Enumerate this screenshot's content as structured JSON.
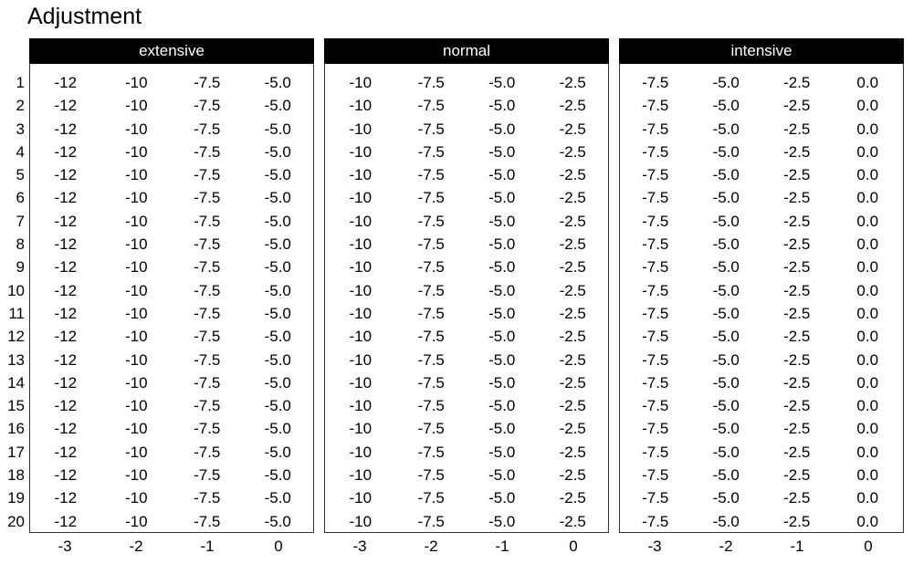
{
  "title": "Adjustment",
  "colors": {
    "background": "#ffffff",
    "header_bg": "#000000",
    "header_text": "#ffffff",
    "body_text": "#000000",
    "border": "#333333"
  },
  "row_numbers": [
    "1",
    "2",
    "3",
    "4",
    "5",
    "6",
    "7",
    "8",
    "9",
    "10",
    "11",
    "12",
    "13",
    "14",
    "15",
    "16",
    "17",
    "18",
    "19",
    "20"
  ],
  "panels": [
    {
      "header": "extensive",
      "row_count": 20,
      "cells": [
        "-12",
        "-10",
        "-7.5",
        "-5.0"
      ],
      "axis_labels": [
        "-3",
        "-2",
        "-1",
        "0"
      ]
    },
    {
      "header": "normal",
      "row_count": 20,
      "cells": [
        "-10",
        "-7.5",
        "-5.0",
        "-2.5"
      ],
      "axis_labels": [
        "-3",
        "-2",
        "-1",
        "0"
      ]
    },
    {
      "header": "intensive",
      "row_count": 20,
      "cells": [
        "-7.5",
        "-5.0",
        "-2.5",
        "0.0"
      ],
      "axis_labels": [
        "-3",
        "-2",
        "-1",
        "0"
      ]
    }
  ],
  "chart_data": {
    "type": "table",
    "title": "Adjustment",
    "column_labels": [
      -3,
      -2,
      -1,
      0
    ],
    "row_labels": [
      1,
      2,
      3,
      4,
      5,
      6,
      7,
      8,
      9,
      10,
      11,
      12,
      13,
      14,
      15,
      16,
      17,
      18,
      19,
      20
    ],
    "panels": [
      {
        "name": "extensive",
        "rows": 20,
        "values_per_row": [
          -12,
          -10,
          -7.5,
          -5.0
        ]
      },
      {
        "name": "normal",
        "rows": 20,
        "values_per_row": [
          -10,
          -7.5,
          -5.0,
          -2.5
        ]
      },
      {
        "name": "intensive",
        "rows": 20,
        "values_per_row": [
          -7.5,
          -5.0,
          -2.5,
          0.0
        ]
      }
    ],
    "layout": {
      "grid": false,
      "legend": false,
      "row_axis_side": "left",
      "column_axis_side": "bottom"
    }
  }
}
